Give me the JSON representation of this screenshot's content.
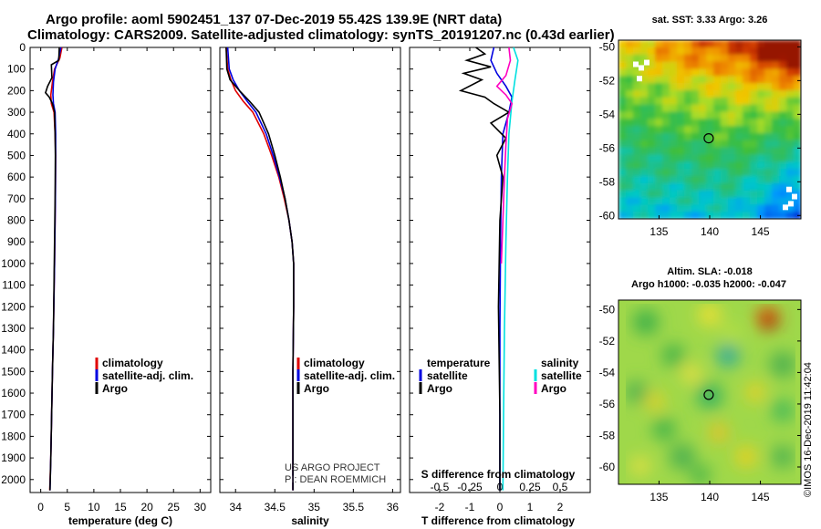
{
  "header": {
    "title_line1": "Argo profile: aoml 5902451_137 07-Dec-2019 55.42S 139.9E (NRT data)",
    "title_line2": "Climatology: CARS2009. Satellite-adjusted climatology: synTS_20191207.nc (0.43d earlier)"
  },
  "colors": {
    "climatology": "#e00000",
    "satellite": "#0000e0",
    "argo": "#000000",
    "sal_satellite": "#00e0e0",
    "sal_argo": "#ff00c0"
  },
  "chart_data": [
    {
      "type": "line",
      "id": "temperature",
      "xlabel": "temperature (deg C)",
      "ylabel": "pressure",
      "xlim": [
        -2,
        32
      ],
      "ylim": [
        2060,
        0
      ],
      "xticks": [
        0,
        5,
        10,
        15,
        20,
        25,
        30
      ],
      "xtick_labels": [
        "0",
        "5",
        "10",
        "15",
        "20",
        "25",
        "30"
      ],
      "yticks": [
        0,
        100,
        200,
        300,
        400,
        500,
        600,
        700,
        800,
        900,
        1000,
        1100,
        1200,
        1300,
        1400,
        1500,
        1600,
        1700,
        1800,
        1900,
        2000
      ],
      "ytick_labels": [
        "0",
        "100",
        "200",
        "300",
        "400",
        "500",
        "600",
        "700",
        "800",
        "900",
        "1000",
        "1100",
        "1200",
        "1300",
        "1400",
        "1500",
        "1600",
        "1700",
        "1800",
        "1900",
        "2000"
      ],
      "legend": [
        "climatology",
        "satellite-adj. clim.",
        "Argo"
      ],
      "series": [
        {
          "name": "climatology",
          "color": "#e00000",
          "x": [
            4.0,
            3.6,
            2.6,
            2.2,
            1.9,
            2.0,
            2.5,
            2.7,
            2.8,
            2.75,
            2.6,
            2.4,
            2.2,
            2.05,
            1.9,
            1.7
          ],
          "y": [
            0,
            50,
            100,
            160,
            220,
            260,
            300,
            400,
            500,
            700,
            1000,
            1300,
            1500,
            1700,
            1900,
            2050
          ]
        },
        {
          "name": "satellite-adj. clim.",
          "color": "#0000e0",
          "x": [
            3.8,
            3.4,
            2.7,
            2.4,
            2.3,
            2.4,
            2.7,
            2.8,
            2.8,
            2.75,
            2.6,
            2.4,
            2.2,
            2.05,
            1.9,
            1.75
          ],
          "y": [
            0,
            50,
            100,
            160,
            220,
            260,
            300,
            400,
            500,
            700,
            1000,
            1300,
            1500,
            1700,
            1900,
            2050
          ]
        },
        {
          "name": "Argo",
          "color": "#000000",
          "x": [
            3.5,
            3.4,
            2.0,
            2.1,
            1.3,
            0.9,
            1.6,
            2.2,
            2.6,
            2.7,
            2.75,
            2.7,
            2.55,
            2.4,
            2.2,
            2.05,
            1.9,
            1.75
          ],
          "y": [
            0,
            60,
            80,
            140,
            180,
            210,
            230,
            260,
            300,
            400,
            500,
            700,
            1000,
            1300,
            1500,
            1700,
            1900,
            2050
          ]
        }
      ]
    },
    {
      "type": "line",
      "id": "salinity",
      "xlabel": "salinity",
      "xlim": [
        33.8,
        36.1
      ],
      "ylim": [
        2060,
        0
      ],
      "xticks": [
        34,
        34.5,
        35,
        35.5,
        36
      ],
      "xtick_labels": [
        "34",
        "34.5",
        "35",
        "35.5",
        "36"
      ],
      "legend": [
        "climatology",
        "satellite-adj. clim.",
        "Argo"
      ],
      "annotation_line1": "US ARGO PROJECT",
      "annotation_line2": "PI: DEAN ROEMMICH",
      "series": [
        {
          "name": "climatology",
          "color": "#e00000",
          "x": [
            33.88,
            33.9,
            33.94,
            34.0,
            34.1,
            34.22,
            34.36,
            34.46,
            34.55,
            34.62,
            34.68,
            34.72,
            34.74,
            34.74,
            34.73,
            34.73
          ],
          "y": [
            0,
            100,
            150,
            200,
            250,
            300,
            400,
            500,
            600,
            700,
            800,
            900,
            1000,
            1200,
            1500,
            2050
          ]
        },
        {
          "name": "satellite-adj. clim.",
          "color": "#0000e0",
          "x": [
            33.9,
            33.92,
            33.97,
            34.05,
            34.15,
            34.26,
            34.39,
            34.48,
            34.56,
            34.63,
            34.68,
            34.72,
            34.74,
            34.74,
            34.73,
            34.73
          ],
          "y": [
            0,
            100,
            150,
            200,
            250,
            300,
            400,
            500,
            600,
            700,
            800,
            900,
            1000,
            1200,
            1500,
            2050
          ]
        },
        {
          "name": "Argo",
          "color": "#000000",
          "x": [
            33.88,
            33.89,
            33.93,
            34.05,
            34.18,
            34.3,
            34.42,
            34.5,
            34.57,
            34.63,
            34.68,
            34.72,
            34.74,
            34.74,
            34.73,
            34.73
          ],
          "y": [
            0,
            100,
            150,
            200,
            250,
            300,
            400,
            500,
            600,
            700,
            800,
            900,
            1000,
            1200,
            1500,
            2050
          ]
        }
      ]
    },
    {
      "type": "line",
      "id": "difference",
      "xlabel": "T difference from climatology",
      "xlabel_top": "S difference from climatology",
      "xlim": [
        -3,
        3
      ],
      "ylim": [
        2060,
        0
      ],
      "xticks": [
        -2,
        -1,
        0,
        1,
        2
      ],
      "xtick_labels": [
        "-2",
        "-1",
        "0",
        "1",
        "2"
      ],
      "sticks_values": [
        -0.5,
        -0.25,
        0,
        0.25,
        0.5
      ],
      "sticks_labels": [
        "-0.5",
        "-0.25",
        "0",
        "0.25",
        "0.5"
      ],
      "legend_left_title": "temperature",
      "legend_left": [
        "satellite",
        "Argo"
      ],
      "legend_right_title": "salinity",
      "legend_right": [
        "satellite",
        "Argo"
      ],
      "series": [
        {
          "name": "T satellite",
          "color": "#0000e0",
          "x": [
            -0.2,
            -0.3,
            -0.1,
            0.2,
            0.4,
            0.3,
            0.1,
            0.05,
            0.02,
            0.0,
            0.0,
            0.0
          ],
          "y": [
            0,
            60,
            120,
            180,
            230,
            300,
            400,
            600,
            900,
            1300,
            1700,
            2050
          ]
        },
        {
          "name": "T Argo",
          "color": "#000000",
          "x": [
            -0.8,
            -0.5,
            -1.1,
            -0.3,
            -1.2,
            -0.6,
            -1.3,
            -0.5,
            -0.2,
            0.3,
            -0.3,
            0.2,
            -0.1,
            0.1,
            0.0,
            -0.05,
            0.0,
            0.0
          ],
          "y": [
            0,
            30,
            60,
            90,
            120,
            150,
            200,
            230,
            260,
            300,
            350,
            420,
            500,
            600,
            800,
            1200,
            1700,
            2050
          ]
        },
        {
          "name": "S satellite",
          "color": "#00e0e0",
          "x": [
            0.45,
            0.6,
            0.5,
            0.4,
            0.3,
            0.25,
            0.2,
            0.15,
            0.12,
            0.1
          ],
          "y": [
            0,
            60,
            150,
            250,
            400,
            600,
            900,
            1300,
            1700,
            2050
          ]
        },
        {
          "name": "S Argo",
          "color": "#ff00c0",
          "x": [
            0.3,
            0.35,
            0.2,
            -0.1,
            0.2,
            0.4,
            0.25,
            0.2,
            0.15,
            0.1,
            0.05
          ],
          "y": [
            0,
            60,
            130,
            180,
            220,
            260,
            330,
            450,
            600,
            800,
            1000
          ]
        }
      ]
    },
    {
      "type": "heatmap",
      "id": "sst_map",
      "title": "sat. SST: 3.33 Argo: 3.26",
      "xlim": [
        131,
        149
      ],
      "ylim": [
        -60.2,
        -49.6
      ],
      "xticks": [
        135,
        140,
        145
      ],
      "xtick_labels": [
        "135",
        "140",
        "145"
      ],
      "yticks": [
        -50,
        -52,
        -54,
        -56,
        -58,
        -60
      ],
      "ytick_labels": [
        "-50",
        "-52",
        "-54",
        "-56",
        "-58",
        "-60"
      ],
      "marker": {
        "lon": 139.9,
        "lat": -55.42
      }
    },
    {
      "type": "heatmap",
      "id": "sla_map",
      "title_line1": "Altim. SLA: -0.018",
      "title_line2": "Argo h1000: -0.035 h2000: -0.047",
      "xlim": [
        131,
        149
      ],
      "ylim": [
        -61.1,
        -49.4
      ],
      "xticks": [
        135,
        140,
        145
      ],
      "xtick_labels": [
        "135",
        "140",
        "145"
      ],
      "yticks": [
        -50,
        -52,
        -54,
        -56,
        -58,
        -60
      ],
      "ytick_labels": [
        "-50",
        "-52",
        "-54",
        "-56",
        "-58",
        "-60"
      ],
      "marker": {
        "lon": 139.9,
        "lat": -55.42
      }
    }
  ],
  "footer": {
    "stamp": "©IMOS 16-Dec-2019 11:42:04"
  }
}
